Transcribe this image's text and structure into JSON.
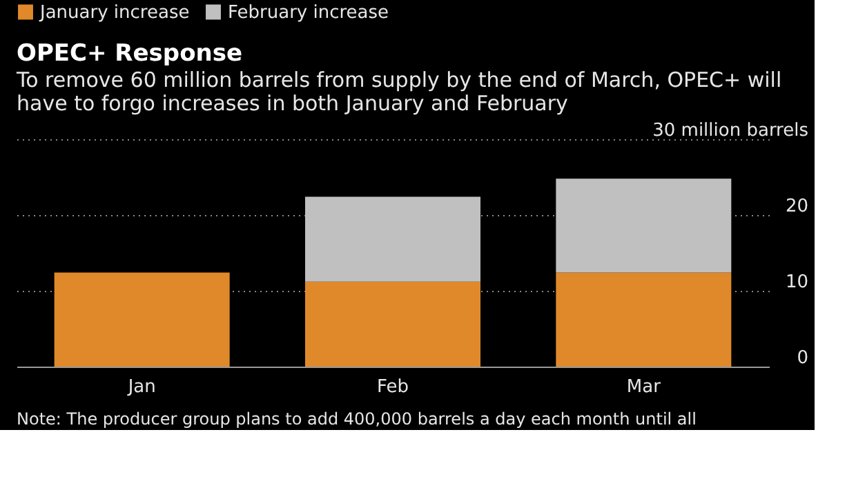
{
  "chart_data": {
    "type": "bar",
    "title": "OPEC+ Response",
    "subtitle": "To remove 60 million barrels from supply by the end of March, OPEC+ will have to forgo increases in both January and February",
    "categories": [
      "Jan",
      "Feb",
      "Mar"
    ],
    "series": [
      {
        "name": "January increase",
        "color": "#e0892a",
        "values": [
          12.4,
          11.2,
          12.4
        ]
      },
      {
        "name": "February increase",
        "color": "#c0c0c0",
        "values": [
          null,
          11.2,
          12.4
        ]
      }
    ],
    "stacked": true,
    "ylim": [
      0,
      30
    ],
    "yticks": [
      0,
      10,
      20,
      {
        "value": 30,
        "label": "30 million barrels"
      }
    ],
    "grid": "y",
    "legend": "top left",
    "annotations": [
      "Note: The producer group plans to add 400,000 barrels a day each month until all"
    ]
  }
}
